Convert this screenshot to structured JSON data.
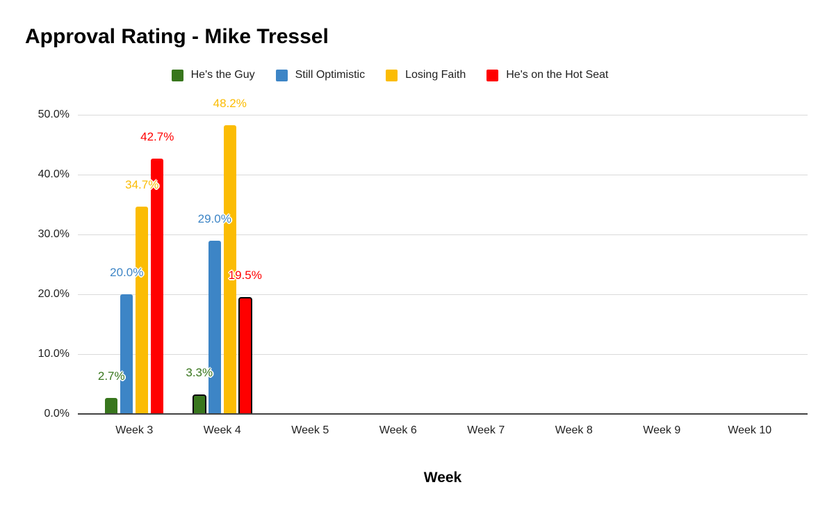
{
  "chart_data": {
    "type": "bar",
    "title": "Approval Rating - Mike Tressel",
    "xlabel": "Week",
    "ylabel": "",
    "ylim": [
      0,
      50
    ],
    "ytick_values": [
      0,
      10,
      20,
      30,
      40,
      50
    ],
    "ytick_labels": [
      "0.0%",
      "10.0%",
      "20.0%",
      "30.0%",
      "40.0%",
      "50.0%"
    ],
    "grid": true,
    "legend_position": "top",
    "categories": [
      "Week 3",
      "Week 4",
      "Week 5",
      "Week 6",
      "Week 7",
      "Week 8",
      "Week 9",
      "Week 10"
    ],
    "series": [
      {
        "name": "He's the Guy",
        "color": "#38761D",
        "values": [
          2.7,
          3.3,
          null,
          null,
          null,
          null,
          null,
          null
        ],
        "labels": [
          "2.7%",
          "3.3%",
          "",
          "",
          "",
          "",
          "",
          ""
        ]
      },
      {
        "name": "Still Optimistic",
        "color": "#3D85C6",
        "values": [
          20.0,
          29.0,
          null,
          null,
          null,
          null,
          null,
          null
        ],
        "labels": [
          "20.0%",
          "29.0%",
          "",
          "",
          "",
          "",
          "",
          ""
        ]
      },
      {
        "name": "Losing Faith",
        "color": "#FBBC04",
        "values": [
          34.7,
          48.2,
          null,
          null,
          null,
          null,
          null,
          null
        ],
        "labels": [
          "34.7%",
          "48.2%",
          "",
          "",
          "",
          "",
          "",
          ""
        ]
      },
      {
        "name": "He's on the Hot Seat",
        "color": "#FF0000",
        "values": [
          42.7,
          19.5,
          null,
          null,
          null,
          null,
          null,
          null
        ],
        "labels": [
          "42.7%",
          "19.5%",
          "",
          "",
          "",
          "",
          "",
          ""
        ]
      }
    ],
    "outlined_points": [
      {
        "series": 0,
        "category": 1
      },
      {
        "series": 3,
        "category": 1
      }
    ]
  }
}
